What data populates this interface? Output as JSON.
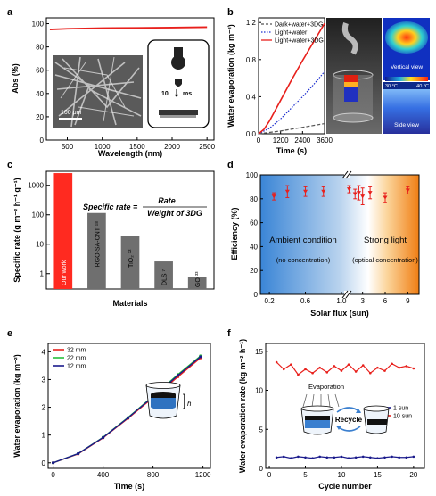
{
  "chart_data": [
    {
      "id": "a",
      "type": "line",
      "panel_label": "a",
      "xlabel": "Wavelength (nm)",
      "ylabel": "Abs (%)",
      "xlim": [
        200,
        2600
      ],
      "ylim": [
        0,
        105
      ],
      "xticks": [
        500,
        1000,
        1500,
        2000,
        2500
      ],
      "yticks": [
        0,
        20,
        40,
        60,
        80,
        100
      ],
      "series": [
        {
          "color": "#e8201c",
          "x": [
            250,
            500,
            1000,
            1500,
            2000,
            2500
          ],
          "y": [
            95,
            95.6,
            96.2,
            96.4,
            96.6,
            97
          ]
        }
      ],
      "inset_texts": {
        "scale_bar": "100 μm",
        "time_value": "10",
        "time_unit": "ms"
      }
    },
    {
      "id": "b",
      "type": "line",
      "panel_label": "b",
      "xlabel": "Time (s)",
      "ylabel": "Water evaporation (kg m⁻²)",
      "xlim": [
        0,
        3600
      ],
      "ylim": [
        0,
        1.25
      ],
      "xticks": [
        0,
        1200,
        2400,
        3600
      ],
      "yticks": [
        0.0,
        0.4,
        0.8,
        1.2
      ],
      "legend_position": "top-left",
      "series": [
        {
          "name": "Dark+water+3DG",
          "color": "#555555",
          "style": "dash",
          "x": [
            0,
            1200,
            2400,
            3600
          ],
          "y": [
            0,
            0.03,
            0.07,
            0.11
          ]
        },
        {
          "name": "Light+water",
          "color": "#1b2dcf",
          "style": "dot",
          "x": [
            0,
            600,
            1200,
            1800,
            2400,
            3000,
            3600
          ],
          "y": [
            0,
            0.06,
            0.16,
            0.28,
            0.4,
            0.53,
            0.67
          ]
        },
        {
          "name": "Light+water+3DG",
          "color": "#e8201c",
          "style": "solid",
          "x": [
            0,
            300,
            600,
            1200,
            1800,
            2400,
            3000,
            3600
          ],
          "y": [
            0,
            0.05,
            0.14,
            0.36,
            0.58,
            0.79,
            0.99,
            1.19
          ]
        }
      ],
      "side_images": {
        "top_view_label": "Vertical view",
        "side_view_label": "Side view",
        "colorbar_min": "30 °C",
        "colorbar_max": "40 °C"
      }
    },
    {
      "id": "c",
      "type": "bar",
      "panel_label": "c",
      "scale": "log",
      "xlabel": "Materials",
      "ylabel": "Specific rate (g m⁻² h⁻¹ g⁻¹)",
      "ylim": [
        0.3,
        3000
      ],
      "yticks": [
        1,
        10,
        100,
        1000
      ],
      "categories": [
        "Our work",
        "RGO-SA-CNT ¹⁸",
        "TiO₂ ³²",
        "DLS ⁷",
        "GO ³³"
      ],
      "values": [
        2600,
        115,
        19,
        2.6,
        0.75
      ],
      "colors": [
        "#ff2a20",
        "#6f6f6f",
        "#6f6f6f",
        "#6f6f6f",
        "#6f6f6f"
      ],
      "equation": {
        "lhs": "Specific rate =",
        "numerator": "Rate",
        "denominator": "Weight of 3DG"
      }
    },
    {
      "id": "d",
      "type": "scatter",
      "panel_label": "d",
      "xlabel": "Solar flux (sun)",
      "ylabel": "Efficiency (%)",
      "ylim": [
        0,
        100
      ],
      "yticks": [
        0,
        20,
        40,
        60,
        80,
        100
      ],
      "xtick_labels": [
        "0.2",
        "0.6",
        "1.0",
        "3",
        "6",
        "9"
      ],
      "x": [
        0.25,
        0.4,
        0.6,
        0.8,
        1.2,
        2,
        2.5,
        3,
        4,
        6,
        9
      ],
      "y": [
        82,
        86,
        86,
        86,
        88,
        84,
        85,
        82,
        85,
        81,
        87
      ],
      "err": [
        3,
        5,
        4,
        4,
        3,
        4,
        6,
        7,
        5,
        4,
        3
      ],
      "color": "#e8201c",
      "regions": [
        {
          "title": "Ambient condition",
          "subtitle": "(no concentration)",
          "color": "#3a8ad8"
        },
        {
          "title": "Strong light",
          "subtitle": "(optical concentration)",
          "color": "#f08a20"
        }
      ]
    },
    {
      "id": "e",
      "type": "line",
      "panel_label": "e",
      "xlabel": "Time (s)",
      "ylabel": "Water evaporation (kg m⁻²)",
      "xlim": [
        -40,
        1260
      ],
      "ylim": [
        -0.2,
        4.3
      ],
      "xticks": [
        0,
        400,
        800,
        1200
      ],
      "yticks": [
        0,
        1,
        2,
        3,
        4
      ],
      "legend_position": "top-left",
      "series": [
        {
          "name": "32 mm",
          "color": "#e8201c",
          "x": [
            0,
            200,
            400,
            600,
            800,
            1000,
            1180
          ],
          "y": [
            0,
            0.32,
            0.9,
            1.6,
            2.35,
            3.1,
            3.78
          ]
        },
        {
          "name": "22 mm",
          "color": "#26c03a",
          "x": [
            0,
            200,
            400,
            600,
            800,
            1000,
            1180
          ],
          "y": [
            0,
            0.33,
            0.92,
            1.63,
            2.4,
            3.18,
            3.85
          ]
        },
        {
          "name": "12 mm",
          "color": "#1a1a8c",
          "x": [
            0,
            200,
            400,
            600,
            800,
            1000,
            1180
          ],
          "y": [
            0,
            0.33,
            0.91,
            1.62,
            2.38,
            3.15,
            3.82
          ]
        }
      ],
      "inset_symbol": "h"
    },
    {
      "id": "f",
      "type": "line",
      "panel_label": "f",
      "xlabel": "Cycle number",
      "ylabel": "Water evaporation rate (kg m⁻² h⁻¹)",
      "xlim": [
        -0.5,
        21.5
      ],
      "ylim": [
        0,
        16
      ],
      "xticks": [
        0,
        5,
        10,
        15,
        20
      ],
      "yticks": [
        0,
        5,
        10,
        15
      ],
      "legend_position": "center-right",
      "series": [
        {
          "name": "1 sun",
          "color": "#1a1a8c",
          "x": [
            1,
            2,
            3,
            4,
            5,
            6,
            7,
            8,
            9,
            10,
            11,
            12,
            13,
            14,
            15,
            16,
            17,
            18,
            19,
            20
          ],
          "y": [
            1.4,
            1.5,
            1.3,
            1.5,
            1.4,
            1.3,
            1.5,
            1.4,
            1.4,
            1.5,
            1.3,
            1.4,
            1.5,
            1.4,
            1.3,
            1.4,
            1.5,
            1.4,
            1.4,
            1.5
          ]
        },
        {
          "name": "10 sun",
          "color": "#e8201c",
          "x": [
            1,
            2,
            3,
            4,
            5,
            6,
            7,
            8,
            9,
            10,
            11,
            12,
            13,
            14,
            15,
            16,
            17,
            18,
            19,
            20
          ],
          "y": [
            13.6,
            12.7,
            13.3,
            12.0,
            12.7,
            12.2,
            12.9,
            12.3,
            13.1,
            12.5,
            13.3,
            12.4,
            13.2,
            12.2,
            12.9,
            12.5,
            13.4,
            12.9,
            13.1,
            12.8
          ]
        }
      ],
      "inset_texts": {
        "evaporation": "Evaporation",
        "recycle": "Recycle"
      }
    }
  ]
}
